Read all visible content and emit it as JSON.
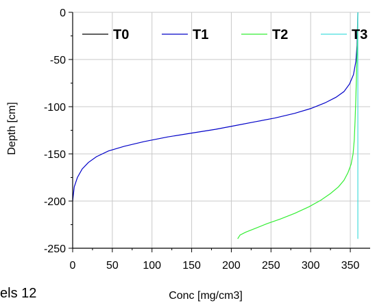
{
  "chart_data": {
    "type": "line",
    "title": "",
    "xlabel": "Conc [mg/cm3]",
    "ylabel": "Depth [cm]",
    "xlim": [
      0,
      375
    ],
    "ylim": [
      -250,
      0
    ],
    "xticks": [
      0,
      50,
      100,
      150,
      200,
      250,
      300,
      350
    ],
    "yticks": [
      0,
      -50,
      -100,
      -150,
      -200,
      -250
    ],
    "grid": true,
    "legend_placement": "top",
    "series": [
      {
        "name": "T0",
        "color": "#000000",
        "x": [],
        "y": []
      },
      {
        "name": "T1",
        "color": "#0000c8",
        "x": [
          0,
          2,
          6,
          12,
          20,
          30,
          45,
          65,
          90,
          120,
          150,
          180,
          205,
          230,
          255,
          280,
          300,
          318,
          332,
          342,
          349,
          354,
          357,
          358.5,
          359.5
        ],
        "y": [
          -200,
          -185,
          -175,
          -166,
          -159,
          -153,
          -147,
          -142,
          -137,
          -132,
          -128,
          -124,
          -120,
          -116,
          -112,
          -107,
          -102,
          -96,
          -90,
          -84,
          -76,
          -66,
          -52,
          -35,
          0
        ]
      },
      {
        "name": "T2",
        "color": "#33ee33",
        "x": [
          208,
          211,
          218,
          230,
          245,
          262,
          280,
          298,
          313,
          325,
          335,
          342,
          347,
          351,
          353.5,
          355,
          356,
          357,
          358,
          359,
          359.5
        ],
        "y": [
          -240,
          -236,
          -233,
          -229,
          -224,
          -219,
          -213,
          -206,
          -199,
          -192,
          -185,
          -178,
          -170,
          -161,
          -150,
          -135,
          -115,
          -90,
          -60,
          -30,
          0
        ]
      },
      {
        "name": "T3",
        "color": "#44dddd",
        "x": [
          359.5,
          359.5
        ],
        "y": [
          -240,
          0
        ]
      }
    ]
  },
  "footer": {
    "text": "els 12"
  }
}
